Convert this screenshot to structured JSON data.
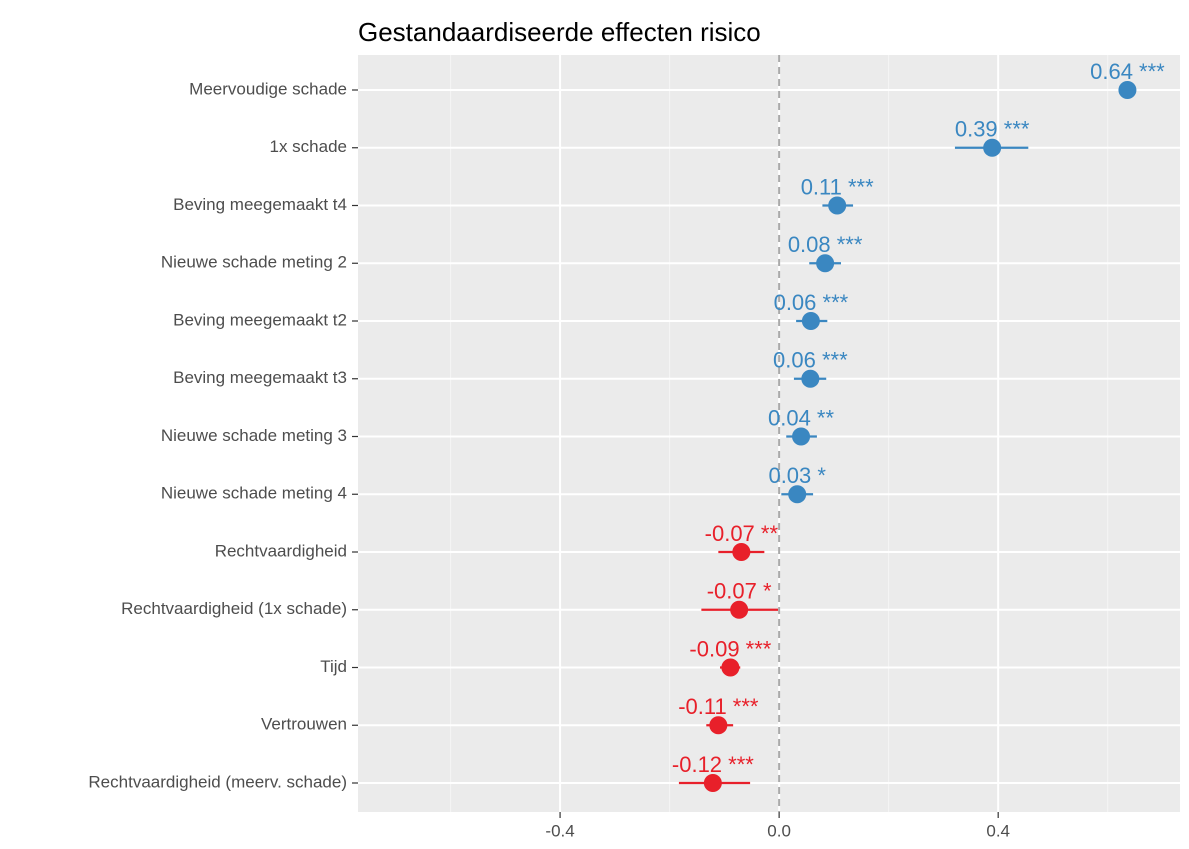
{
  "chart_data": {
    "type": "dot_errorbar",
    "title": "Gestandaardiseerde effecten risico",
    "categories": [
      "Meervoudige schade",
      "1x schade",
      "Beving meegemaakt t4",
      "Nieuwe schade meting 2",
      "Beving meegemaakt t2",
      "Beving meegemaakt t3",
      "Nieuwe schade meting 3",
      "Nieuwe schade meting 4",
      "Rechtvaardigheid",
      "Rechtvaardigheid (1x schade)",
      "Tijd",
      "Vertrouwen",
      "Rechtvaardigheid (meerv. schade)"
    ],
    "values": [
      0.636,
      0.389,
      0.106,
      0.084,
      0.058,
      0.057,
      0.04,
      0.033,
      -0.069,
      -0.073,
      -0.089,
      -0.111,
      -0.121
    ],
    "value_labels": [
      "0.64 ***",
      "0.39 ***",
      "0.11 ***",
      "0.08 ***",
      "0.06 ***",
      "0.06 ***",
      "0.04 **",
      "0.03 *",
      "-0.07 **",
      "-0.07 *",
      "-0.09 ***",
      "-0.11 ***",
      "-0.12 ***"
    ],
    "ci_low": [
      0.625,
      0.321,
      0.079,
      0.055,
      0.031,
      0.027,
      0.013,
      0.004,
      -0.111,
      -0.142,
      -0.108,
      -0.133,
      -0.183
    ],
    "ci_high": [
      0.648,
      0.455,
      0.135,
      0.113,
      0.088,
      0.086,
      0.069,
      0.062,
      -0.027,
      -0.002,
      -0.071,
      -0.084,
      -0.053
    ],
    "point_colors": [
      "#3a87c1",
      "#3a87c1",
      "#3a87c1",
      "#3a87c1",
      "#3a87c1",
      "#3a87c1",
      "#3a87c1",
      "#3a87c1",
      "#e8202a",
      "#e8202a",
      "#e8202a",
      "#e8202a",
      "#e8202a"
    ],
    "xlim": [
      -0.769,
      0.732
    ],
    "xticks": [
      {
        "value": -0.4,
        "label": "-0.4"
      },
      {
        "value": 0,
        "label": "0.0"
      },
      {
        "value": 0.4,
        "label": "0.4"
      }
    ],
    "x_minor_ticks": [
      -0.6,
      -0.2,
      0.2,
      0.6
    ],
    "reference_line": 0,
    "grid": true
  }
}
